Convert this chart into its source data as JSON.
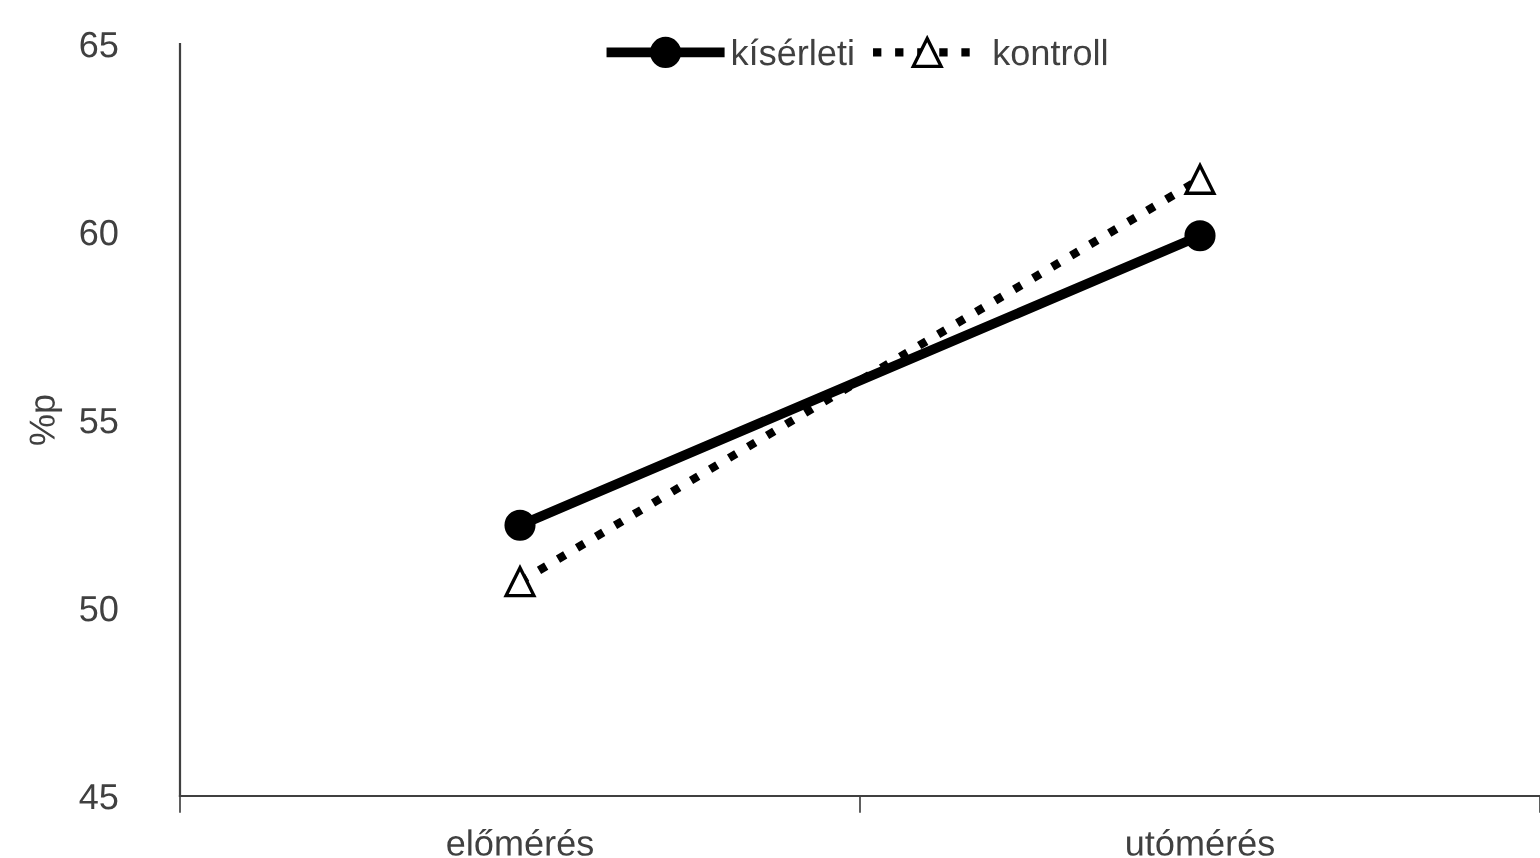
{
  "chart_data": {
    "type": "line",
    "ylabel": "%p",
    "categories": [
      "előmérés",
      "utómérés"
    ],
    "series": [
      {
        "name": "kísérleti",
        "color": "#000000",
        "values": [
          52.2,
          59.9
        ],
        "marker": "circle",
        "line_style": "solid"
      },
      {
        "name": "kontroll",
        "color": "#000000",
        "values": [
          50.7,
          61.4
        ],
        "marker": "triangle",
        "line_style": "dotted"
      }
    ],
    "ylim": [
      45,
      65
    ],
    "yticks": [
      45,
      50,
      55,
      60,
      65
    ],
    "grid": false,
    "legend": "top"
  }
}
